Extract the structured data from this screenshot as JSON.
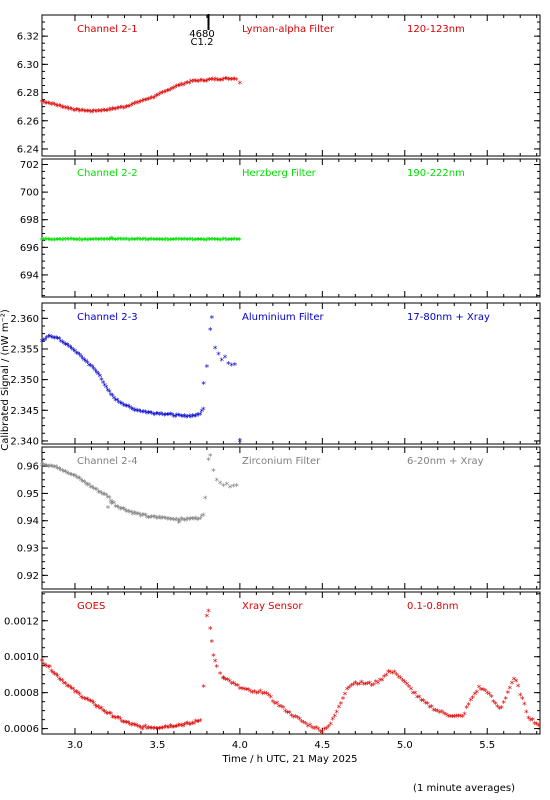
{
  "figure": {
    "ylabel": "Calibrated Signal / (nW m⁻²)",
    "xlabel": "Time / h UTC, 21 May 2025",
    "footnote": "(1 minute averages)",
    "marker_label_top": "4680",
    "marker_label_bottom": "C1.2"
  },
  "chart_data": [
    {
      "type": "scatter",
      "title": "Channel 2-1",
      "filter": "Lyman-alpha Filter",
      "band": "120-123nm",
      "color": "#dd0000",
      "xlim": [
        2.8,
        5.82
      ],
      "ylim": [
        6.235,
        6.335
      ],
      "xticks": [
        "3.0",
        "3.5",
        "4.0",
        "4.5",
        "5.0",
        "5.5"
      ],
      "yticks": [
        "6.24",
        "6.26",
        "6.28",
        "6.30",
        "6.32"
      ],
      "curve": [
        [
          2.8,
          6.273
        ],
        [
          2.9,
          6.27
        ],
        [
          3.0,
          6.267
        ],
        [
          3.1,
          6.266
        ],
        [
          3.2,
          6.267
        ],
        [
          3.3,
          6.269
        ],
        [
          3.4,
          6.273
        ],
        [
          3.5,
          6.277
        ],
        [
          3.55,
          6.28
        ],
        [
          3.6,
          6.283
        ],
        [
          3.7,
          6.287
        ],
        [
          3.8,
          6.288
        ],
        [
          3.9,
          6.289
        ],
        [
          3.98,
          6.289
        ]
      ],
      "noise": 0.0006,
      "outliers": [
        [
          4.0,
          6.286
        ]
      ]
    },
    {
      "type": "scatter",
      "title": "Channel 2-2",
      "filter": "Herzberg Filter",
      "band": "190-222nm",
      "color": "#00dd00",
      "xlim": [
        2.8,
        5.82
      ],
      "ylim": [
        692.4,
        702.4
      ],
      "xticks": [
        "3.0",
        "3.5",
        "4.0",
        "4.5",
        "5.0",
        "5.5"
      ],
      "yticks": [
        "694",
        "696",
        "698",
        "700",
        "702"
      ],
      "curve": [
        [
          2.8,
          696.5
        ],
        [
          4.0,
          696.5
        ]
      ],
      "noise": 0.03,
      "outliers": [
        [
          3.22,
          696.6
        ]
      ]
    },
    {
      "type": "scatter",
      "title": "Channel 2-3",
      "filter": "Aluminium Filter",
      "band": "17-80nm + Xray",
      "color": "#0000cc",
      "xlim": [
        2.8,
        5.82
      ],
      "ylim": [
        2.3395,
        2.3625
      ],
      "xticks": [
        "3.0",
        "3.5",
        "4.0",
        "4.5",
        "5.0",
        "5.5"
      ],
      "yticks": [
        "2.340",
        "2.345",
        "2.350",
        "2.355",
        "2.360"
      ],
      "curve": [
        [
          2.8,
          2.356
        ],
        [
          2.85,
          2.357
        ],
        [
          2.9,
          2.3565
        ],
        [
          3.0,
          2.3545
        ],
        [
          3.1,
          2.352
        ],
        [
          3.15,
          2.3505
        ],
        [
          3.2,
          2.348
        ],
        [
          3.25,
          2.3465
        ],
        [
          3.35,
          2.345
        ],
        [
          3.45,
          2.3444
        ],
        [
          3.55,
          2.3442
        ],
        [
          3.65,
          2.3438
        ],
        [
          3.75,
          2.344
        ],
        [
          3.78,
          2.345
        ]
      ],
      "noise": 0.00015,
      "outliers": [
        [
          3.78,
          2.3492
        ],
        [
          3.8,
          2.352
        ],
        [
          3.82,
          2.358
        ],
        [
          3.83,
          2.36
        ],
        [
          3.85,
          2.355
        ],
        [
          3.87,
          2.354
        ],
        [
          3.89,
          2.353
        ],
        [
          3.91,
          2.3535
        ],
        [
          3.93,
          2.3525
        ],
        [
          3.95,
          2.3522
        ],
        [
          3.97,
          2.3523
        ],
        [
          4.0,
          2.3398
        ]
      ]
    },
    {
      "type": "scatter",
      "title": "Channel 2-4",
      "filter": "Zirconium Filter",
      "band": "6-20nm + Xray",
      "color": "#808080",
      "xlim": [
        2.8,
        5.82
      ],
      "ylim": [
        0.915,
        0.967
      ],
      "xticks": [
        "3.0",
        "3.5",
        "4.0",
        "4.5",
        "5.0",
        "5.5"
      ],
      "yticks": [
        "0.92",
        "0.93",
        "0.94",
        "0.95",
        "0.96"
      ],
      "curve": [
        [
          2.8,
          0.9605
        ],
        [
          2.9,
          0.959
        ],
        [
          3.0,
          0.956
        ],
        [
          3.1,
          0.952
        ],
        [
          3.2,
          0.9485
        ],
        [
          3.25,
          0.945
        ],
        [
          3.35,
          0.9425
        ],
        [
          3.45,
          0.941
        ],
        [
          3.55,
          0.9405
        ],
        [
          3.65,
          0.94
        ],
        [
          3.75,
          0.9405
        ],
        [
          3.78,
          0.9415
        ]
      ],
      "noise": 0.0004,
      "outliers": [
        [
          3.2,
          0.9445
        ],
        [
          3.22,
          0.946
        ],
        [
          3.63,
          0.939
        ],
        [
          3.79,
          0.948
        ],
        [
          3.81,
          0.962
        ],
        [
          3.82,
          0.9635
        ],
        [
          3.84,
          0.958
        ],
        [
          3.86,
          0.9545
        ],
        [
          3.88,
          0.9535
        ],
        [
          3.9,
          0.9525
        ],
        [
          3.92,
          0.953
        ],
        [
          3.94,
          0.952
        ],
        [
          3.96,
          0.9523
        ],
        [
          3.98,
          0.9525
        ]
      ]
    },
    {
      "type": "scatter",
      "title": "GOES",
      "filter": "Xray Sensor",
      "band": "0.1-0.8nm",
      "color": "#dd0000",
      "xlim": [
        2.8,
        5.82
      ],
      "ylim": [
        0.00057,
        0.00136
      ],
      "xticks": [
        "3.0",
        "3.5",
        "4.0",
        "4.5",
        "5.0",
        "5.5"
      ],
      "yticks": [
        "0.0006",
        "0.0008",
        "0.0010",
        "0.0012"
      ],
      "curve": [
        [
          2.8,
          0.00097
        ],
        [
          2.85,
          0.00093
        ],
        [
          2.9,
          0.00088
        ],
        [
          3.0,
          0.0008
        ],
        [
          3.1,
          0.00074
        ],
        [
          3.2,
          0.00068
        ],
        [
          3.3,
          0.00063
        ],
        [
          3.4,
          0.0006
        ],
        [
          3.5,
          0.0006
        ],
        [
          3.6,
          0.00061
        ],
        [
          3.7,
          0.00062
        ],
        [
          3.76,
          0.00064
        ]
      ],
      "noise": 8e-06,
      "outliers": [
        [
          3.78,
          0.00083
        ],
        [
          3.8,
          0.00122
        ],
        [
          3.81,
          0.00125
        ],
        [
          3.82,
          0.00115
        ],
        [
          3.83,
          0.00108
        ],
        [
          3.84,
          0.001
        ],
        [
          3.85,
          0.00097
        ],
        [
          3.86,
          0.00094
        ],
        [
          3.88,
          0.0009
        ],
        [
          3.9,
          0.00088
        ]
      ],
      "curve2": [
        [
          3.9,
          0.00088
        ],
        [
          4.0,
          0.00082
        ],
        [
          4.1,
          0.00079
        ],
        [
          4.15,
          0.0008
        ],
        [
          4.2,
          0.00075
        ],
        [
          4.3,
          0.00068
        ],
        [
          4.4,
          0.00062
        ],
        [
          4.5,
          0.00058
        ],
        [
          4.55,
          0.00062
        ],
        [
          4.6,
          0.00071
        ],
        [
          4.65,
          0.00082
        ],
        [
          4.7,
          0.00085
        ],
        [
          4.8,
          0.00084
        ],
        [
          4.85,
          0.00086
        ],
        [
          4.9,
          0.00091
        ],
        [
          4.95,
          0.0009
        ],
        [
          5.0,
          0.00085
        ],
        [
          5.1,
          0.00075
        ],
        [
          5.2,
          0.00069
        ],
        [
          5.3,
          0.00066
        ],
        [
          5.35,
          0.00066
        ],
        [
          5.4,
          0.00075
        ],
        [
          5.45,
          0.00082
        ],
        [
          5.5,
          0.0008
        ],
        [
          5.55,
          0.00073
        ],
        [
          5.58,
          0.0007
        ],
        [
          5.6,
          0.00074
        ],
        [
          5.65,
          0.00085
        ],
        [
          5.67,
          0.00087
        ],
        [
          5.7,
          0.00079
        ],
        [
          5.75,
          0.00066
        ],
        [
          5.8,
          0.00062
        ],
        [
          5.82,
          0.00061
        ]
      ]
    }
  ]
}
